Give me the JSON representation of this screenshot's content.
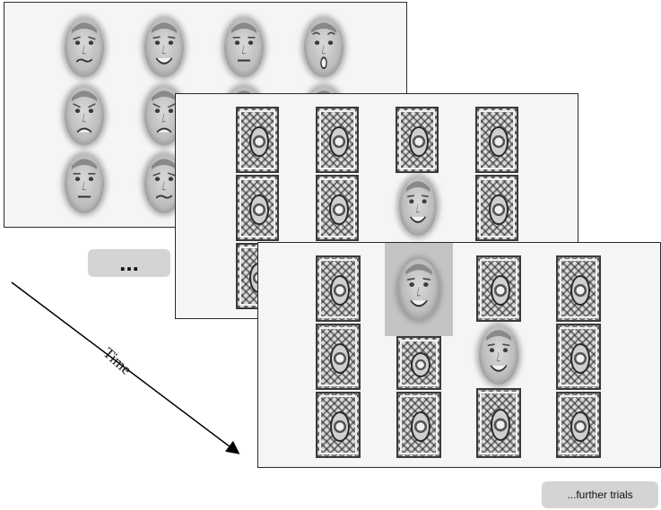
{
  "labels": {
    "ellipsis": "...",
    "further_trials": "...further trials",
    "time": "Time"
  },
  "colors": {
    "panel_background": "#f5f5f5",
    "label_box": "#d4d4d4",
    "highlight_frame": "#c4c4c4"
  },
  "panels": [
    {
      "name": "face-matrix-panel",
      "grid": "4 columns x 3 rows",
      "faces": [
        "disgust",
        "happy",
        "neutral",
        "surprise",
        "sad",
        "sad",
        "neutral",
        "disgust"
      ]
    },
    {
      "name": "card-panel-trial",
      "columns": [
        [
          "card",
          "card",
          "card"
        ],
        [
          "card",
          "card",
          "card"
        ],
        [
          "card",
          "happy"
        ],
        [
          "card",
          "card",
          "card"
        ]
      ]
    },
    {
      "name": "card-panel-selected",
      "columns": [
        [
          "card",
          "card",
          "card"
        ],
        [
          "happy",
          "card",
          "card"
        ],
        [
          "card",
          "happy",
          "card"
        ],
        [
          "card",
          "card",
          "card"
        ]
      ],
      "highlighted": "happy"
    }
  ]
}
